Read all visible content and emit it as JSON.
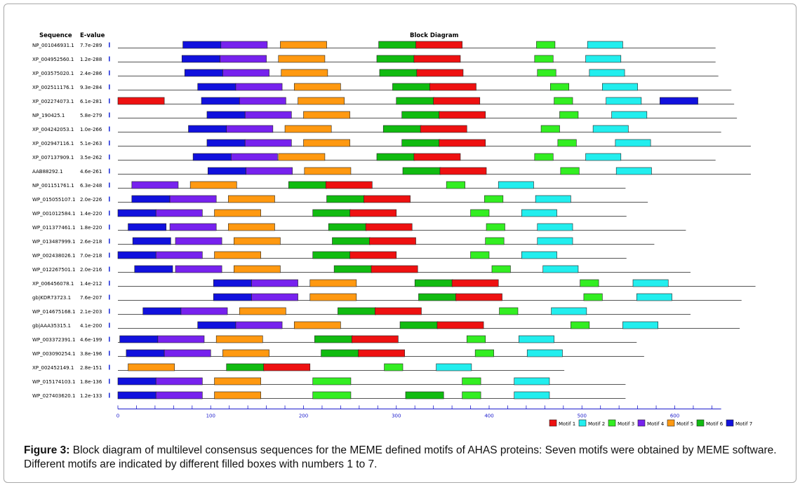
{
  "header": {
    "sequence_col": "Sequence",
    "evalue_col": "E-value",
    "diagram_col": "Block Diagram"
  },
  "motif_colors": {
    "1": "#ee1111",
    "2": "#22eeee",
    "3": "#33ee22",
    "4": "#7722ee",
    "5": "#ff9911",
    "6": "#11bb11",
    "7": "#1111dd"
  },
  "chart_data": {
    "type": "block_diagram",
    "x_axis": {
      "range": [
        0,
        650
      ],
      "ticks": [
        0,
        100,
        200,
        300,
        400,
        500,
        600
      ]
    },
    "legend": [
      {
        "motif": 1,
        "label": "Motif 1"
      },
      {
        "motif": 2,
        "label": "Motif 2"
      },
      {
        "motif": 3,
        "label": "Motif 3"
      },
      {
        "motif": 4,
        "label": "Motif 4"
      },
      {
        "motif": 5,
        "label": "Motif 5"
      },
      {
        "motif": 6,
        "label": "Motif 6"
      },
      {
        "motif": 7,
        "label": "Motif 7"
      }
    ],
    "sequences": [
      {
        "name": "NP_001046931.1",
        "evalue": "7.7e-289",
        "length": 644,
        "blocks": [
          [
            7,
            70,
            41
          ],
          [
            4,
            111,
            50
          ],
          [
            5,
            175,
            50
          ],
          [
            6,
            281,
            41
          ],
          [
            1,
            321,
            50
          ],
          [
            3,
            451,
            20
          ],
          [
            2,
            506,
            38
          ]
        ]
      },
      {
        "name": "XP_004952560.1",
        "evalue": "1.2e-288",
        "length": 644,
        "blocks": [
          [
            7,
            69,
            41
          ],
          [
            4,
            110,
            50
          ],
          [
            5,
            173,
            50
          ],
          [
            6,
            279,
            41
          ],
          [
            1,
            319,
            50
          ],
          [
            3,
            449,
            20
          ],
          [
            2,
            504,
            38
          ]
        ]
      },
      {
        "name": "XP_003575020.1",
        "evalue": "2.4e-286",
        "length": 647,
        "blocks": [
          [
            7,
            72,
            41
          ],
          [
            4,
            113,
            50
          ],
          [
            5,
            176,
            50
          ],
          [
            6,
            282,
            41
          ],
          [
            1,
            322,
            50
          ],
          [
            3,
            452,
            20
          ],
          [
            2,
            508,
            38
          ]
        ]
      },
      {
        "name": "XP_002511176.1",
        "evalue": "9.3e-284",
        "length": 661,
        "blocks": [
          [
            7,
            86,
            41
          ],
          [
            4,
            127,
            50
          ],
          [
            5,
            190,
            50
          ],
          [
            6,
            296,
            41
          ],
          [
            1,
            336,
            50
          ],
          [
            3,
            466,
            20
          ],
          [
            2,
            522,
            38
          ]
        ]
      },
      {
        "name": "XP_002274073.1",
        "evalue": "6.1e-281",
        "length": 664,
        "blocks": [
          [
            1,
            0,
            50
          ],
          [
            7,
            90,
            41
          ],
          [
            4,
            131,
            50
          ],
          [
            5,
            194,
            50
          ],
          [
            6,
            300,
            41
          ],
          [
            1,
            340,
            50
          ],
          [
            3,
            470,
            20
          ],
          [
            2,
            526,
            38
          ],
          [
            7,
            584,
            41
          ]
        ]
      },
      {
        "name": "NP_190425.1",
        "evalue": "5.8e-279",
        "length": 667,
        "blocks": [
          [
            7,
            96,
            41
          ],
          [
            4,
            137,
            50
          ],
          [
            5,
            200,
            50
          ],
          [
            6,
            306,
            41
          ],
          [
            1,
            346,
            50
          ],
          [
            3,
            476,
            20
          ],
          [
            2,
            532,
            38
          ]
        ]
      },
      {
        "name": "XP_004242053.1",
        "evalue": "1.0e-266",
        "length": 650,
        "blocks": [
          [
            7,
            76,
            41
          ],
          [
            4,
            117,
            50
          ],
          [
            5,
            180,
            50
          ],
          [
            6,
            286,
            41
          ],
          [
            1,
            326,
            50
          ],
          [
            3,
            456,
            20
          ],
          [
            2,
            512,
            38
          ]
        ]
      },
      {
        "name": "XP_002947116.1",
        "evalue": "5.1e-263",
        "length": 682,
        "blocks": [
          [
            7,
            96,
            41
          ],
          [
            4,
            137,
            50
          ],
          [
            5,
            200,
            50
          ],
          [
            6,
            306,
            41
          ],
          [
            1,
            346,
            50
          ],
          [
            3,
            474,
            20
          ],
          [
            2,
            536,
            38
          ]
        ]
      },
      {
        "name": "XP_007137909.1",
        "evalue": "3.5e-262",
        "length": 644,
        "blocks": [
          [
            7,
            81,
            41
          ],
          [
            4,
            122,
            50
          ],
          [
            5,
            173,
            50
          ],
          [
            6,
            279,
            41
          ],
          [
            1,
            319,
            50
          ],
          [
            3,
            449,
            20
          ],
          [
            2,
            504,
            38
          ]
        ]
      },
      {
        "name": "AAB88292.1",
        "evalue": "4.6e-261",
        "length": 682,
        "blocks": [
          [
            7,
            97,
            41
          ],
          [
            4,
            138,
            50
          ],
          [
            5,
            201,
            50
          ],
          [
            6,
            307,
            41
          ],
          [
            1,
            347,
            50
          ],
          [
            3,
            477,
            20
          ],
          [
            2,
            537,
            38
          ]
        ]
      },
      {
        "name": "NP_001151761.1",
        "evalue": "6.3e-248",
        "length": 547,
        "blocks": [
          [
            4,
            15,
            50
          ],
          [
            5,
            78,
            50
          ],
          [
            6,
            184,
            41
          ],
          [
            1,
            224,
            50
          ],
          [
            3,
            354,
            20
          ],
          [
            2,
            410,
            38
          ]
        ]
      },
      {
        "name": "WP_015055107.1",
        "evalue": "2.0e-226",
        "length": 571,
        "blocks": [
          [
            7,
            15,
            41
          ],
          [
            4,
            56,
            50
          ],
          [
            5,
            119,
            50
          ],
          [
            6,
            225,
            41
          ],
          [
            1,
            265,
            50
          ],
          [
            3,
            395,
            20
          ],
          [
            2,
            450,
            38
          ]
        ]
      },
      {
        "name": "WP_001012584.1",
        "evalue": "1.4e-220",
        "length": 548,
        "blocks": [
          [
            7,
            0,
            41
          ],
          [
            4,
            41,
            50
          ],
          [
            5,
            104,
            50
          ],
          [
            6,
            210,
            41
          ],
          [
            1,
            250,
            50
          ],
          [
            3,
            380,
            20
          ],
          [
            2,
            435,
            38
          ]
        ]
      },
      {
        "name": "WP_011377461.1",
        "evalue": "1.8e-220",
        "length": 612,
        "blocks": [
          [
            7,
            11,
            41
          ],
          [
            4,
            56,
            50
          ],
          [
            5,
            119,
            50
          ],
          [
            6,
            227,
            41
          ],
          [
            1,
            267,
            50
          ],
          [
            3,
            397,
            20
          ],
          [
            2,
            452,
            38
          ]
        ]
      },
      {
        "name": "WP_013487999.1",
        "evalue": "2.6e-218",
        "length": 578,
        "blocks": [
          [
            7,
            16,
            41
          ],
          [
            4,
            62,
            50
          ],
          [
            5,
            125,
            50
          ],
          [
            6,
            231,
            41
          ],
          [
            1,
            271,
            50
          ],
          [
            3,
            396,
            20
          ],
          [
            2,
            452,
            38
          ]
        ]
      },
      {
        "name": "WP_002438026.1",
        "evalue": "7.0e-218",
        "length": 548,
        "blocks": [
          [
            7,
            0,
            41
          ],
          [
            4,
            41,
            50
          ],
          [
            5,
            104,
            50
          ],
          [
            6,
            210,
            41
          ],
          [
            1,
            250,
            50
          ],
          [
            3,
            380,
            20
          ],
          [
            2,
            435,
            38
          ]
        ]
      },
      {
        "name": "WP_012267501.1",
        "evalue": "2.0e-216",
        "length": 617,
        "blocks": [
          [
            7,
            18,
            41
          ],
          [
            4,
            62,
            50
          ],
          [
            5,
            125,
            50
          ],
          [
            6,
            233,
            41
          ],
          [
            1,
            273,
            50
          ],
          [
            3,
            403,
            20
          ],
          [
            2,
            458,
            38
          ]
        ]
      },
      {
        "name": "XP_006456078.1",
        "evalue": "1.4e-212",
        "length": 687,
        "blocks": [
          [
            7,
            103,
            41
          ],
          [
            4,
            144,
            50
          ],
          [
            5,
            207,
            50
          ],
          [
            6,
            320,
            41
          ],
          [
            1,
            360,
            50
          ],
          [
            3,
            498,
            20
          ],
          [
            2,
            555,
            38
          ]
        ]
      },
      {
        "name": "gb|KDR73723.1",
        "evalue": "7.6e-207",
        "length": 672,
        "blocks": [
          [
            7,
            103,
            41
          ],
          [
            4,
            144,
            50
          ],
          [
            5,
            207,
            50
          ],
          [
            6,
            324,
            41
          ],
          [
            1,
            364,
            50
          ],
          [
            3,
            502,
            20
          ],
          [
            2,
            559,
            38
          ]
        ]
      },
      {
        "name": "WP_014675168.1",
        "evalue": "2.1e-203",
        "length": 617,
        "blocks": [
          [
            7,
            27,
            41
          ],
          [
            4,
            68,
            50
          ],
          [
            5,
            131,
            50
          ],
          [
            6,
            237,
            41
          ],
          [
            1,
            277,
            50
          ],
          [
            3,
            411,
            20
          ],
          [
            2,
            467,
            38
          ]
        ]
      },
      {
        "name": "gb|AAA35315.1",
        "evalue": "4.1e-200",
        "length": 670,
        "blocks": [
          [
            7,
            86,
            41
          ],
          [
            4,
            127,
            50
          ],
          [
            5,
            190,
            50
          ],
          [
            6,
            304,
            41
          ],
          [
            1,
            344,
            50
          ],
          [
            3,
            488,
            20
          ],
          [
            2,
            544,
            38
          ]
        ]
      },
      {
        "name": "WP_003372391.1",
        "evalue": "4.6e-199",
        "length": 559,
        "blocks": [
          [
            7,
            2,
            41
          ],
          [
            4,
            43,
            50
          ],
          [
            5,
            106,
            50
          ],
          [
            6,
            212,
            41
          ],
          [
            1,
            252,
            50
          ],
          [
            3,
            376,
            20
          ],
          [
            2,
            432,
            38
          ]
        ]
      },
      {
        "name": "WP_003090254.1",
        "evalue": "3.8e-196",
        "length": 567,
        "blocks": [
          [
            7,
            9,
            41
          ],
          [
            4,
            50,
            50
          ],
          [
            5,
            113,
            50
          ],
          [
            6,
            219,
            41
          ],
          [
            1,
            259,
            50
          ],
          [
            3,
            385,
            20
          ],
          [
            2,
            441,
            38
          ]
        ]
      },
      {
        "name": "XP_002452149.1",
        "evalue": "2.8e-151",
        "length": 481,
        "blocks": [
          [
            5,
            11,
            50
          ],
          [
            6,
            117,
            41
          ],
          [
            1,
            157,
            50
          ],
          [
            3,
            287,
            20
          ],
          [
            2,
            343,
            38
          ]
        ]
      },
      {
        "name": "WP_015174103.1",
        "evalue": "1.8e-136",
        "length": 547,
        "blocks": [
          [
            7,
            0,
            41
          ],
          [
            4,
            41,
            50
          ],
          [
            5,
            104,
            50
          ],
          [
            3,
            210,
            41
          ],
          [
            3,
            371,
            20
          ],
          [
            2,
            427,
            38
          ]
        ]
      },
      {
        "name": "WP_027403620.1",
        "evalue": "1.2e-133",
        "length": 547,
        "blocks": [
          [
            7,
            0,
            41
          ],
          [
            4,
            41,
            50
          ],
          [
            5,
            104,
            50
          ],
          [
            3,
            210,
            41
          ],
          [
            6,
            310,
            41
          ],
          [
            3,
            371,
            20
          ],
          [
            2,
            427,
            38
          ]
        ]
      }
    ]
  },
  "caption": {
    "label": "Figure 3:",
    "text": " Block diagram of multilevel consensus sequences for the MEME defined motifs of AHAS proteins: Seven motifs were obtained by MEME software. Different motifs are indicated by different filled boxes with numbers 1 to 7."
  }
}
